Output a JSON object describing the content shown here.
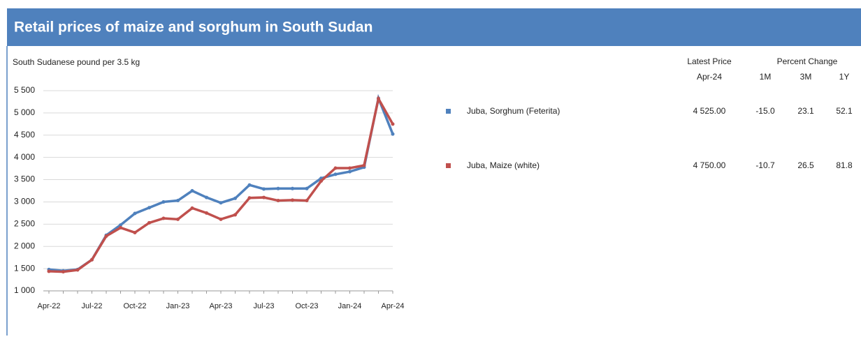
{
  "chart_data": {
    "type": "line",
    "title": "Retail prices of maize and sorghum in South Sudan",
    "y_label": "South Sudanese pound per 3.5 kg",
    "categories": [
      "Apr-22",
      null,
      null,
      "Jul-22",
      null,
      null,
      "Oct-22",
      null,
      null,
      "Jan-23",
      null,
      null,
      "Apr-23",
      null,
      null,
      "Jul-23",
      null,
      null,
      "Oct-23",
      null,
      null,
      "Jan-24",
      null,
      null,
      "Apr-24"
    ],
    "series": [
      {
        "name": "Juba, Sorghum (Feterita)",
        "color": "#4f81bd",
        "values": [
          1480,
          1450,
          1480,
          1700,
          2250,
          2480,
          2740,
          2870,
          3000,
          3030,
          3250,
          3100,
          2980,
          3080,
          3380,
          3290,
          3300,
          3300,
          3300,
          3530,
          3620,
          3680,
          3780,
          5330,
          4525
        ]
      },
      {
        "name": "Juba, Maize (white)",
        "color": "#c0504d",
        "values": [
          1440,
          1430,
          1470,
          1700,
          2230,
          2420,
          2310,
          2530,
          2630,
          2610,
          2860,
          2750,
          2610,
          2710,
          3090,
          3100,
          3030,
          3040,
          3030,
          3470,
          3760,
          3760,
          3820,
          5320,
          4750
        ]
      }
    ],
    "ylim": [
      1000,
      5500
    ],
    "yticks": [
      {
        "value": 1000,
        "label": "1 000"
      },
      {
        "value": 1500,
        "label": "1 500"
      },
      {
        "value": 2000,
        "label": "2 000"
      },
      {
        "value": 2500,
        "label": "2 500"
      },
      {
        "value": 3000,
        "label": "3 000"
      },
      {
        "value": 3500,
        "label": "3 500"
      },
      {
        "value": 4000,
        "label": "4 000"
      },
      {
        "value": 4500,
        "label": "4 500"
      },
      {
        "value": 5000,
        "label": "5 000"
      },
      {
        "value": 5500,
        "label": "5 500"
      }
    ],
    "grid": true,
    "table": {
      "latest_price": "Latest Price",
      "latest_month": "Apr-24",
      "percent_change": "Percent Change",
      "columns": [
        "1M",
        "3M",
        "1Y"
      ],
      "rows": [
        [
          "4 525.00",
          "-15.0",
          "23.1",
          "52.1"
        ],
        [
          "4 750.00",
          "-10.7",
          "26.5",
          "81.8"
        ]
      ]
    }
  }
}
